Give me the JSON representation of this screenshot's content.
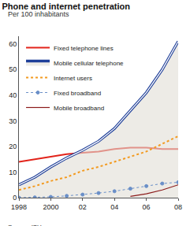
{
  "chart_data": {
    "type": "line",
    "title": "Phone and internet penetration",
    "subtitle": "Per 100 inhabitants",
    "source": "Source: ITU",
    "x": [
      1998,
      1999,
      2000,
      2001,
      2002,
      2003,
      2004,
      2005,
      2006,
      2007,
      2008
    ],
    "series": [
      {
        "name": "Fixed telephone lines",
        "color": "#e2231a",
        "line_style": "solid",
        "values": [
          14,
          15,
          16,
          17,
          17.5,
          18,
          19,
          19.5,
          19.5,
          19,
          19
        ]
      },
      {
        "name": "Mobile cellular telephone",
        "color": "#1f3f99",
        "line_style": "double",
        "values": [
          5,
          8,
          12,
          15.5,
          18.5,
          22,
          27,
          34,
          41,
          50,
          61
        ]
      },
      {
        "name": "Internet users",
        "color": "#f39a1f",
        "line_style": "dotted",
        "values": [
          3,
          4.5,
          6.5,
          8,
          10.5,
          12,
          14,
          16,
          18,
          21,
          24
        ]
      },
      {
        "name": "Fixed broadband",
        "color": "#6a8fc8",
        "line_style": "dotted",
        "marker": "open-circle",
        "values": [
          0,
          0.1,
          0.3,
          0.7,
          1.2,
          1.8,
          2.5,
          3.5,
          4.5,
          5.5,
          6
        ]
      },
      {
        "name": "Mobile broadband",
        "color": "#8b1a1a",
        "line_style": "thin",
        "values": [
          null,
          null,
          null,
          null,
          null,
          null,
          null,
          0.5,
          1.5,
          3,
          5
        ]
      }
    ],
    "xlim": [
      1998,
      2008
    ],
    "xticks": [
      1998,
      2000,
      {
        "value": 2002,
        "label": "02"
      },
      {
        "value": 2004,
        "label": "04"
      },
      {
        "value": 2006,
        "label": "06"
      },
      {
        "value": 2008,
        "label": "08"
      }
    ],
    "ylim": [
      0,
      63
    ],
    "yticks": [
      0,
      10,
      20,
      30,
      40,
      50,
      60
    ],
    "grid": false,
    "legend": "top-left"
  }
}
